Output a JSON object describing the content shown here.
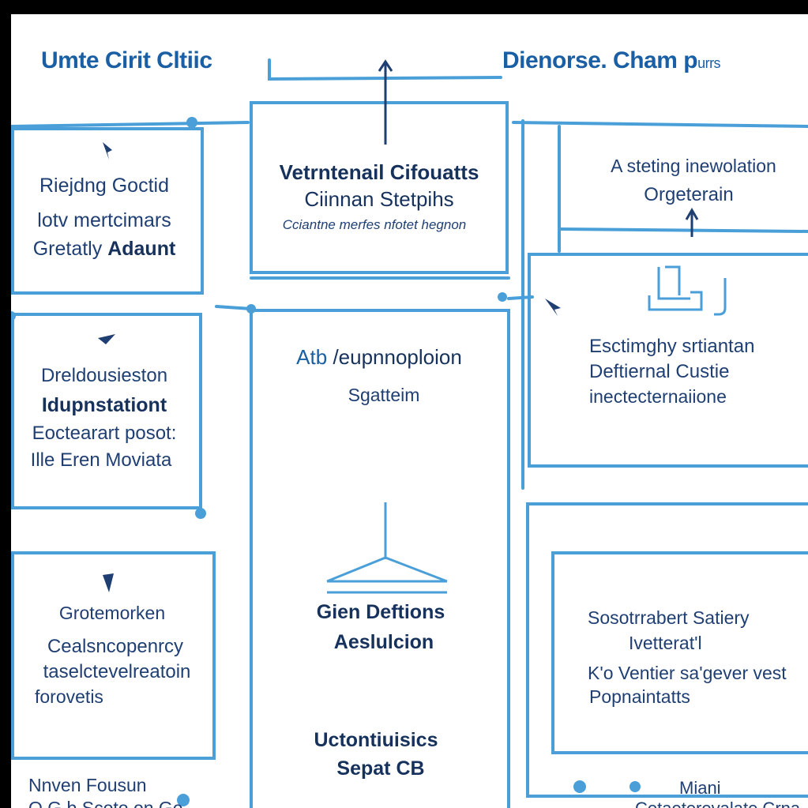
{
  "header": {
    "left_title": "Umte Cirit Cltiic",
    "right_title": "Dienorse. Cham p",
    "right_title_suffix": "urrs"
  },
  "left_column": {
    "box1": {
      "line1": "Riejdng Goctid",
      "line2": "lotv mertcimars",
      "line3_a": "Gretatly ",
      "line3_b": "Adaunt"
    },
    "box2": {
      "line1": "Dreldousieston",
      "line2": "Idupnstationt",
      "line3": "Eoctearart posot:",
      "line4": "Ille Eren Moviata"
    },
    "box3": {
      "line1": "Grotemorken",
      "line2": "Cealsncopenrcy",
      "line3": "taselctevelreatoin",
      "line4": "forovetis"
    },
    "footer": {
      "line1": "Nnven Fousun",
      "line2": "O G b Scoto on Ge"
    }
  },
  "center_column": {
    "top_box": {
      "line1": "Vetrntenail Cifouatts",
      "line2": "Ciinnan Stetpihs",
      "line3": "Cciantne merfes nfotet hegnon"
    },
    "middle": {
      "line1_prefix": "Atb",
      "line1": "/eupnnoploion",
      "line2": "Sgatteim"
    },
    "lower": {
      "line1": "Gien Deftions",
      "line2": "Aeslulcion"
    },
    "bottom": {
      "line1": "Uctontiuisics",
      "line2": "Sepat CB"
    }
  },
  "right_column": {
    "box1": {
      "line1": "A steting inewolation",
      "line2": "Orgeterain"
    },
    "box2": {
      "line1": "Esctimghy srtiantan",
      "line2": "Deftiernal Custie",
      "line3": "inectecternaiione"
    },
    "box3": {
      "line1": "Sosotrrabert Satiery",
      "line2": "Ivetterat'l",
      "line3": "K'o Ventier sa'gever vest",
      "line4": "Popnaintatts"
    },
    "footer": {
      "line1": "Miani",
      "line2": "Cotaeterevalate Crna"
    }
  },
  "colors": {
    "line": "#4a9fd8",
    "line_light": "#7fbde6",
    "text": "#1f3f73",
    "title": "#1a5fa3",
    "icon": "#1f3f73"
  },
  "icons": [
    "arrow-up-icon",
    "cursor-icon",
    "building-icon",
    "lab-flask-icon",
    "dot-marker-icon"
  ]
}
